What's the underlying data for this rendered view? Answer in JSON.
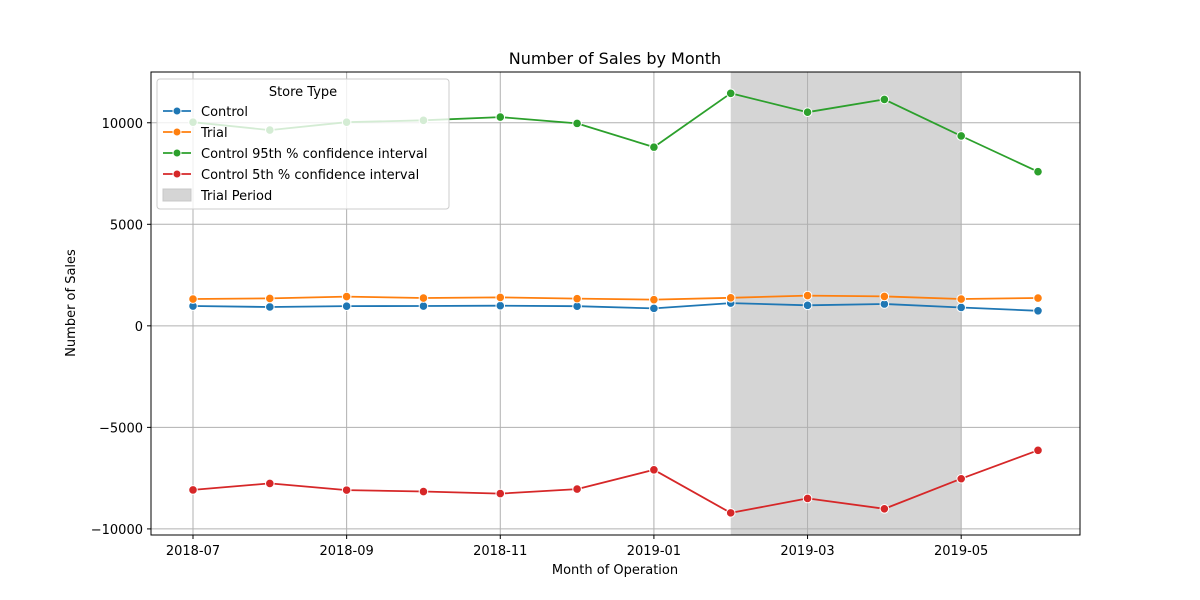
{
  "chart_data": {
    "type": "line",
    "title": "Number of Sales by Month",
    "xlabel": "Month of Operation",
    "ylabel": "Number of Sales",
    "x": [
      "2018-07",
      "2018-08",
      "2018-09",
      "2018-10",
      "2018-11",
      "2018-12",
      "2019-01",
      "2019-02",
      "2019-03",
      "2019-04",
      "2019-05",
      "2019-06"
    ],
    "x_tick_labels": [
      "2018-07",
      "2018-09",
      "2018-11",
      "2019-01",
      "2019-03",
      "2019-05"
    ],
    "ylim": [
      -10300,
      12500
    ],
    "y_ticks": [
      -10000,
      -5000,
      0,
      5000,
      10000
    ],
    "y_tick_labels": [
      "−10000",
      "−5000",
      "0",
      "5000",
      "10000"
    ],
    "grid": true,
    "series": [
      {
        "name": "Control",
        "color": "#1f77b4",
        "values": [
          975,
          930,
          970,
          975,
          990,
          965,
          860,
          1120,
          1010,
          1075,
          905,
          740
        ]
      },
      {
        "name": "Trial",
        "color": "#ff7f0e",
        "values": [
          1320,
          1350,
          1440,
          1370,
          1400,
          1340,
          1290,
          1380,
          1490,
          1450,
          1320,
          1370
        ]
      },
      {
        "name": "Control 95th % confidence interval",
        "color": "#2ca02c",
        "values": [
          10030,
          9640,
          10030,
          10120,
          10280,
          9970,
          8800,
          11450,
          10520,
          11150,
          9350,
          7590
        ]
      },
      {
        "name": "Control 5th % confidence interval",
        "color": "#d62728",
        "values": [
          -8080,
          -7760,
          -8090,
          -8160,
          -8260,
          -8040,
          -7090,
          -9210,
          -8500,
          -9010,
          -7530,
          -6130
        ]
      }
    ],
    "shaded_region": {
      "name": "Trial Period",
      "color": "#d5d5d5",
      "x_start": "2019-02",
      "x_end": "2019-05"
    },
    "legend": {
      "title": "Store Type",
      "placement": "top-left"
    }
  }
}
